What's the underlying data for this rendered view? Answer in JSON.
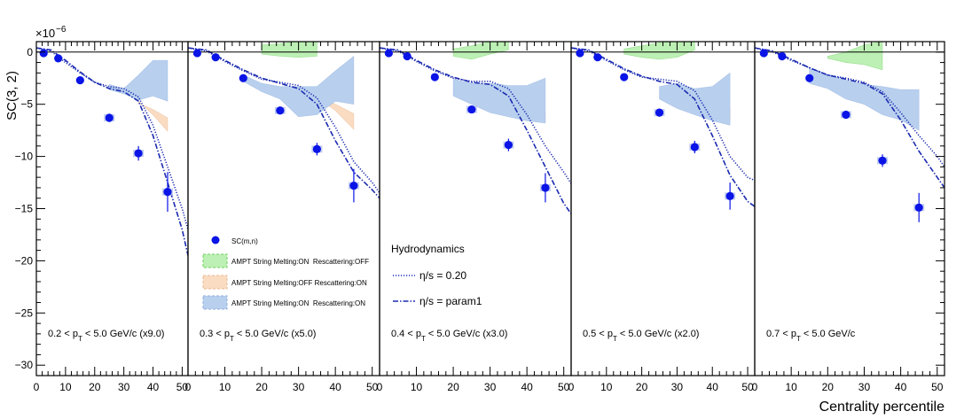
{
  "figure": {
    "y_exponent_base": "×10",
    "y_exponent_power": "−6",
    "ylabel": "SC(3, 2)",
    "xlabel": "Centrality percentile"
  },
  "legend": {
    "data_label": "SC(m,n)",
    "ampt1_label": "AMPT String Melting:ON  Rescattering:OFF",
    "ampt2_label": "AMPT String Melting:OFF Rescattering:ON",
    "ampt3_label": "AMPT String Melting:ON  Rescattering:ON",
    "hydro_title": "Hydrodynamics",
    "hydro1_label": "η/s = 0.20",
    "hydro2_label": "η/s = param1"
  },
  "colors": {
    "data": "#0a14e6",
    "ampt_on_off_fill": "#bdf0b4",
    "ampt_on_off_edge": "#6ed060",
    "ampt_off_on_fill": "#fadcc2",
    "ampt_off_on_edge": "#e8b890",
    "ampt_on_on_fill": "#b8d0ee",
    "ampt_on_on_edge": "#90aee0",
    "hydro": "#1a2ab0"
  },
  "chart_data": [
    {
      "type": "scatter",
      "panel_label": {
        "pre": "0.2 < p",
        "sub": "T",
        "post": " < 5.0 GeV/c (x9.0)"
      },
      "xlim": [
        0,
        52
      ],
      "ylim": [
        -31,
        1
      ],
      "xticks": [
        0,
        10,
        20,
        30,
        40,
        50
      ],
      "yticks": [
        0,
        -5,
        -10,
        -15,
        -20,
        -25,
        -30
      ],
      "data": [
        [
          2.5,
          -0.1,
          0.1
        ],
        [
          7.5,
          -0.6,
          0.15
        ],
        [
          15,
          -2.7,
          0.2
        ],
        [
          25,
          -6.3,
          0.4
        ],
        [
          35,
          -9.7,
          0.7
        ],
        [
          45,
          -13.4,
          1.9
        ]
      ],
      "ampt_on_off": [],
      "ampt_off_on": [
        [
          35,
          -4.9,
          -4.7
        ],
        [
          40,
          -5.5,
          -6.0
        ],
        [
          45,
          -6.3,
          -7.6
        ]
      ],
      "ampt_on_on": [
        [
          25,
          -3.1,
          -3.6
        ],
        [
          30,
          -3.5,
          -4.0
        ],
        [
          35,
          -2.2,
          -4.6
        ],
        [
          40,
          -0.8,
          -4.2
        ],
        [
          45,
          -0.8,
          -4.7
        ]
      ],
      "hydro_020": [
        [
          0,
          0.4
        ],
        [
          5,
          0.1
        ],
        [
          10,
          -1.0
        ],
        [
          15,
          -2.0
        ],
        [
          20,
          -2.9
        ],
        [
          25,
          -3.3
        ],
        [
          30,
          -3.5
        ],
        [
          35,
          -4.3
        ],
        [
          40,
          -7.0
        ],
        [
          45,
          -11.0
        ],
        [
          50,
          -15.0
        ],
        [
          52,
          -17.0
        ]
      ],
      "hydro_param1": [
        [
          0,
          0.4
        ],
        [
          5,
          0.2
        ],
        [
          10,
          -0.8
        ],
        [
          15,
          -1.9
        ],
        [
          20,
          -2.9
        ],
        [
          25,
          -3.5
        ],
        [
          30,
          -3.8
        ],
        [
          35,
          -4.7
        ],
        [
          40,
          -8.0
        ],
        [
          45,
          -12.5
        ],
        [
          50,
          -17.0
        ],
        [
          52,
          -19.5
        ]
      ]
    },
    {
      "type": "scatter",
      "panel_label": {
        "pre": "0.3 < p",
        "sub": "T",
        "post": " < 5.0 GeV/c (x5.0)"
      },
      "xlim": [
        0,
        52
      ],
      "ylim": [
        -31,
        1
      ],
      "xticks": [
        0,
        10,
        20,
        30,
        40,
        50
      ],
      "yticks": [
        0,
        -5,
        -10,
        -15,
        -20,
        -25,
        -30
      ],
      "data": [
        [
          2.5,
          -0.1,
          0.1
        ],
        [
          7.5,
          -0.5,
          0.15
        ],
        [
          15,
          -2.5,
          0.2
        ],
        [
          25,
          -5.6,
          0.35
        ],
        [
          35,
          -9.3,
          0.6
        ],
        [
          45,
          -12.8,
          1.6
        ]
      ],
      "ampt_on_off": [
        [
          20,
          -0.2,
          0.7
        ],
        [
          25,
          -0.4,
          0.8
        ],
        [
          30,
          -0.5,
          1.0
        ],
        [
          35,
          -0.4,
          1.0
        ]
      ],
      "ampt_off_on": [
        [
          35,
          -4.3,
          -4.4
        ],
        [
          40,
          -5.0,
          -5.6
        ],
        [
          45,
          -5.9,
          -7.4
        ]
      ],
      "ampt_on_on": [
        [
          15,
          -2.2,
          -2.8
        ],
        [
          20,
          -3.0,
          -3.8
        ],
        [
          25,
          -3.3,
          -4.5
        ],
        [
          30,
          -3.3,
          -6.2
        ],
        [
          35,
          -3.3,
          -6.0
        ],
        [
          40,
          -1.8,
          -4.7
        ],
        [
          45,
          -0.4,
          -5.0
        ]
      ],
      "hydro_020": [
        [
          0,
          0.4
        ],
        [
          5,
          0.1
        ],
        [
          10,
          -0.9
        ],
        [
          15,
          -1.8
        ],
        [
          20,
          -2.6
        ],
        [
          25,
          -2.9
        ],
        [
          30,
          -3.2
        ],
        [
          35,
          -4.4
        ],
        [
          40,
          -7.2
        ],
        [
          45,
          -10.5
        ],
        [
          50,
          -12.5
        ],
        [
          52,
          -13.5
        ]
      ],
      "hydro_param1": [
        [
          0,
          0.4
        ],
        [
          5,
          0.2
        ],
        [
          10,
          -0.8
        ],
        [
          15,
          -1.7
        ],
        [
          20,
          -2.5
        ],
        [
          25,
          -3.0
        ],
        [
          30,
          -3.5
        ],
        [
          35,
          -5.0
        ],
        [
          40,
          -8.5
        ],
        [
          45,
          -11.5
        ],
        [
          50,
          -13.2
        ],
        [
          52,
          -14.0
        ]
      ]
    },
    {
      "type": "scatter",
      "panel_label": {
        "pre": "0.4 < p",
        "sub": "T",
        "post": " < 5.0 GeV/c (x3.0)"
      },
      "xlim": [
        0,
        52
      ],
      "ylim": [
        -31,
        1
      ],
      "xticks": [
        0,
        10,
        20,
        30,
        40,
        50
      ],
      "yticks": [
        0,
        -5,
        -10,
        -15,
        -20,
        -25,
        -30
      ],
      "data": [
        [
          2.5,
          -0.1,
          0.1
        ],
        [
          7.5,
          -0.4,
          0.15
        ],
        [
          15,
          -2.4,
          0.2
        ],
        [
          25,
          -5.5,
          0.3
        ],
        [
          35,
          -8.9,
          0.6
        ],
        [
          45,
          -13.0,
          1.4
        ]
      ],
      "ampt_on_off": [
        [
          20,
          -0.4,
          0.3
        ],
        [
          25,
          -0.7,
          0.6
        ],
        [
          30,
          -0.2,
          1.0
        ],
        [
          35,
          0.2,
          1.0
        ]
      ],
      "ampt_off_on": [
        [
          35,
          -5.0,
          -5.3
        ],
        [
          40,
          -5.4,
          -6.0
        ],
        [
          45,
          -5.9,
          -6.7
        ]
      ],
      "ampt_on_on": [
        [
          20,
          -2.6,
          -4.2
        ],
        [
          25,
          -3.0,
          -5.0
        ],
        [
          30,
          -3.0,
          -5.8
        ],
        [
          35,
          -3.2,
          -6.2
        ],
        [
          40,
          -3.2,
          -6.6
        ],
        [
          45,
          -2.5,
          -6.8
        ]
      ],
      "hydro_020": [
        [
          0,
          0.4
        ],
        [
          5,
          0.1
        ],
        [
          10,
          -0.9
        ],
        [
          15,
          -1.8
        ],
        [
          20,
          -2.5
        ],
        [
          25,
          -2.8
        ],
        [
          30,
          -2.8
        ],
        [
          35,
          -3.5
        ],
        [
          40,
          -6.0
        ],
        [
          45,
          -9.0
        ],
        [
          50,
          -11.5
        ],
        [
          52,
          -12.6
        ]
      ],
      "hydro_param1": [
        [
          0,
          0.4
        ],
        [
          5,
          0.2
        ],
        [
          10,
          -0.8
        ],
        [
          15,
          -1.7
        ],
        [
          20,
          -2.4
        ],
        [
          25,
          -2.9
        ],
        [
          30,
          -3.1
        ],
        [
          35,
          -4.2
        ],
        [
          40,
          -7.5
        ],
        [
          45,
          -11.0
        ],
        [
          50,
          -14.5
        ],
        [
          52,
          -15.5
        ]
      ]
    },
    {
      "type": "scatter",
      "panel_label": {
        "pre": "0.5 < p",
        "sub": "T",
        "post": " < 5.0 GeV/c (x2.0)"
      },
      "xlim": [
        0,
        52
      ],
      "ylim": [
        -31,
        1
      ],
      "xticks": [
        0,
        10,
        20,
        30,
        40,
        50
      ],
      "yticks": [
        0,
        -5,
        -10,
        -15,
        -20,
        -25,
        -30
      ],
      "data": [
        [
          2.5,
          -0.1,
          0.1
        ],
        [
          7.5,
          -0.5,
          0.15
        ],
        [
          15,
          -2.4,
          0.2
        ],
        [
          25,
          -5.8,
          0.3
        ],
        [
          35,
          -9.1,
          0.6
        ],
        [
          45,
          -13.8,
          1.3
        ]
      ],
      "ampt_on_off": [
        [
          15,
          -0.2,
          0.3
        ],
        [
          20,
          -0.5,
          0.6
        ],
        [
          25,
          -0.7,
          0.9
        ],
        [
          30,
          -0.5,
          1.0
        ],
        [
          35,
          0.2,
          1.0
        ]
      ],
      "ampt_off_on": [
        [
          30,
          -3.3,
          -3.6
        ],
        [
          35,
          -4.6,
          -5.0
        ],
        [
          40,
          -5.0,
          -5.6
        ],
        [
          45,
          -5.4,
          -6.5
        ]
      ],
      "ampt_on_on": [
        [
          25,
          -3.3,
          -4.5
        ],
        [
          30,
          -3.0,
          -5.4
        ],
        [
          35,
          -3.5,
          -6.0
        ],
        [
          40,
          -3.3,
          -6.6
        ],
        [
          45,
          -2.0,
          -7.0
        ]
      ],
      "hydro_020": [
        [
          0,
          0.4
        ],
        [
          5,
          0.1
        ],
        [
          10,
          -0.8
        ],
        [
          15,
          -1.7
        ],
        [
          20,
          -2.4
        ],
        [
          25,
          -2.6
        ],
        [
          30,
          -2.8
        ],
        [
          35,
          -3.7
        ],
        [
          40,
          -6.5
        ],
        [
          45,
          -10.0
        ],
        [
          50,
          -12.0
        ],
        [
          52,
          -12.3
        ]
      ],
      "hydro_param1": [
        [
          0,
          0.4
        ],
        [
          5,
          0.2
        ],
        [
          10,
          -0.7
        ],
        [
          15,
          -1.6
        ],
        [
          20,
          -2.3
        ],
        [
          25,
          -2.8
        ],
        [
          30,
          -3.1
        ],
        [
          35,
          -4.5
        ],
        [
          40,
          -8.0
        ],
        [
          45,
          -11.8
        ],
        [
          50,
          -14.3
        ],
        [
          52,
          -14.8
        ]
      ]
    },
    {
      "type": "scatter",
      "panel_label": {
        "pre": "0.7 < p",
        "sub": "T",
        "post": " < 5.0 GeV/c"
      },
      "xlim": [
        0,
        52
      ],
      "ylim": [
        -31,
        1
      ],
      "xticks": [
        0,
        10,
        20,
        30,
        40,
        50
      ],
      "yticks": [
        0,
        -5,
        -10,
        -15,
        -20,
        -25,
        -30
      ],
      "data": [
        [
          2.5,
          -0.1,
          0.1
        ],
        [
          7.5,
          -0.4,
          0.15
        ],
        [
          15,
          -2.5,
          0.2
        ],
        [
          25,
          -6.0,
          0.3
        ],
        [
          35,
          -10.4,
          0.6
        ],
        [
          45,
          -14.9,
          1.4
        ]
      ],
      "ampt_on_off": [
        [
          20,
          -0.6,
          -0.4
        ],
        [
          25,
          -1.0,
          0.0
        ],
        [
          30,
          -1.2,
          0.7
        ],
        [
          35,
          -1.7,
          1.0
        ]
      ],
      "ampt_off_on": [],
      "ampt_on_on": [
        [
          15,
          -1.6,
          -3.0
        ],
        [
          20,
          -2.2,
          -3.5
        ],
        [
          25,
          -2.7,
          -4.5
        ],
        [
          30,
          -3.1,
          -5.0
        ],
        [
          35,
          -3.3,
          -6.0
        ],
        [
          40,
          -3.6,
          -6.5
        ],
        [
          45,
          -3.6,
          -7.5
        ]
      ],
      "hydro_020": [
        [
          0,
          0.4
        ],
        [
          5,
          0.0
        ],
        [
          10,
          -0.8
        ],
        [
          15,
          -1.5
        ],
        [
          20,
          -2.2
        ],
        [
          25,
          -2.5
        ],
        [
          30,
          -2.9
        ],
        [
          35,
          -3.8
        ],
        [
          40,
          -5.8
        ],
        [
          45,
          -8.0
        ],
        [
          50,
          -10.0
        ],
        [
          52,
          -11.0
        ]
      ],
      "hydro_param1": [
        [
          0,
          0.4
        ],
        [
          5,
          0.1
        ],
        [
          10,
          -0.7
        ],
        [
          15,
          -1.5
        ],
        [
          20,
          -2.2
        ],
        [
          25,
          -2.6
        ],
        [
          30,
          -3.0
        ],
        [
          35,
          -4.0
        ],
        [
          40,
          -6.5
        ],
        [
          45,
          -9.5
        ],
        [
          50,
          -12.0
        ],
        [
          52,
          -13.0
        ]
      ]
    }
  ]
}
